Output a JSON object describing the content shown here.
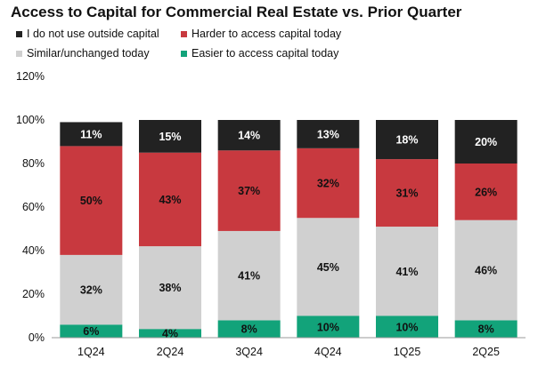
{
  "chart_data": {
    "type": "bar",
    "stacked": true,
    "title": "Access to Capital for Commercial Real Estate vs. Prior Quarter",
    "categories": [
      "1Q24",
      "2Q24",
      "3Q24",
      "4Q24",
      "1Q25",
      "2Q25"
    ],
    "series": [
      {
        "key": "easier",
        "name": "Easier to access capital today",
        "color": "#12a37a",
        "label_color": "#111111",
        "values": [
          6,
          4,
          8,
          10,
          10,
          8
        ],
        "labels": [
          "6%",
          "4%",
          "8%",
          "10%",
          "10%",
          "8%"
        ]
      },
      {
        "key": "similar",
        "name": "Similar/unchanged today",
        "color": "#d0d0d0",
        "label_color": "#111111",
        "values": [
          32,
          38,
          41,
          45,
          41,
          46
        ],
        "labels": [
          "32%",
          "38%",
          "41%",
          "45%",
          "41%",
          "46%"
        ]
      },
      {
        "key": "harder",
        "name": "Harder to access capital today",
        "color": "#c8393f",
        "label_color": "#111111",
        "values": [
          50,
          43,
          37,
          32,
          31,
          26
        ],
        "labels": [
          "50%",
          "43%",
          "37%",
          "32%",
          "31%",
          "26%"
        ]
      },
      {
        "key": "no_outside",
        "name": "I do not use outside capital",
        "color": "#222222",
        "label_color": "#ffffff",
        "values": [
          11,
          15,
          14,
          13,
          18,
          20
        ],
        "labels": [
          "11%",
          "15%",
          "14%",
          "13%",
          "18%",
          "20%"
        ]
      }
    ],
    "y_ticks": [
      "0%",
      "20%",
      "40%",
      "60%",
      "80%",
      "100%",
      "120%"
    ],
    "ylim": [
      0,
      120
    ],
    "grid": false,
    "legend_position": "top-left"
  }
}
